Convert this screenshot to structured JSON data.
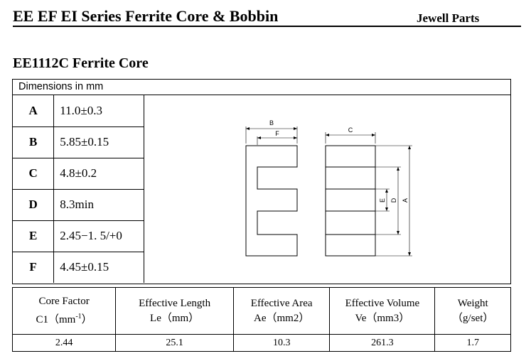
{
  "header": {
    "title": "EE EF EI Series Ferrite Core & Bobbin",
    "brand": "Jewell Parts"
  },
  "product": {
    "title": "EE1112C Ferrite Core"
  },
  "dimensions": {
    "heading": "Dimensions in mm",
    "rows": [
      {
        "key": "A",
        "value": "11.0±0.3"
      },
      {
        "key": "B",
        "value": "5.85±0.15"
      },
      {
        "key": "C",
        "value": "4.8±0.2"
      },
      {
        "key": "D",
        "value": "8.3min"
      },
      {
        "key": "E",
        "value": "2.45−1. 5/+0"
      },
      {
        "key": "F",
        "value": "4.45±0.15"
      }
    ]
  },
  "drawing": {
    "labels": {
      "b": "B",
      "f": "F",
      "c": "C",
      "e": "E",
      "d": "D",
      "a": "A"
    }
  },
  "properties": {
    "headers": [
      {
        "line1": "Core Factor",
        "line2_main": "C1（mm",
        "line2_sup": "-1",
        "line2_end": "）"
      },
      {
        "line1": "Effective Length",
        "line2_main": "Le（mm）",
        "line2_sup": "",
        "line2_end": ""
      },
      {
        "line1": "Effective Area",
        "line2_main": "Ae（mm2）",
        "line2_sup": "",
        "line2_end": ""
      },
      {
        "line1": "Effective Volume",
        "line2_main": "Ve（mm3）",
        "line2_sup": "",
        "line2_end": ""
      },
      {
        "line1": "Weight",
        "line2_main": "（g/set）",
        "line2_sup": "",
        "line2_end": ""
      }
    ],
    "values": [
      "2.44",
      "25.1",
      "10.3",
      "261.3",
      "1.7"
    ]
  }
}
